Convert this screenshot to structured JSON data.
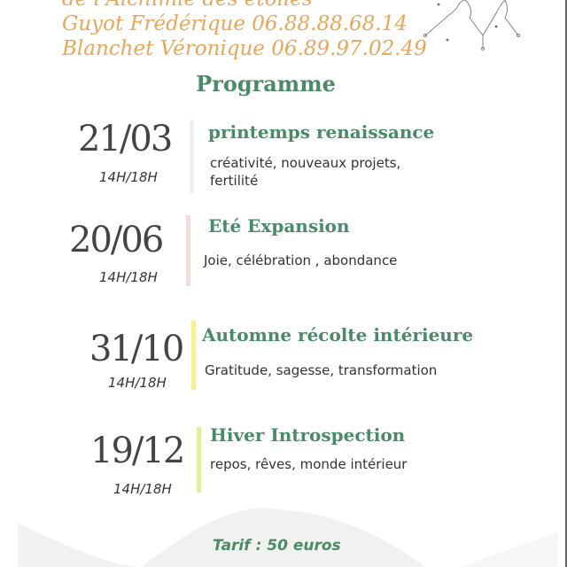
{
  "header": {
    "line1": "de l'Alchimie des étoiles",
    "line2": "Guyot Frédérique 06.88.88.68.14",
    "line3": "Blanchet Véronique 06.89.97.02.49",
    "illustration_icon": "constellation-faces-icon"
  },
  "programme": {
    "heading": "Programme",
    "sessions": [
      {
        "date": "21/03",
        "time": "14H/18H",
        "title": "printemps renaissance",
        "desc1": "créativité, nouveaux projets,",
        "desc2": "fertilité",
        "color": "#f2efef"
      },
      {
        "date": "20/06",
        "time": "14H/18H",
        "title": "Eté Expansion",
        "desc1": "Joie, célébration , abondance",
        "color": "#f5dcdc"
      },
      {
        "date": "31/10",
        "time": "14H/18H",
        "title": "Automne récolte intérieure",
        "desc1": "Gratitude, sagesse, transformation",
        "color": "#f8ee9a"
      },
      {
        "date": "19/12",
        "time": "14H/18H",
        "title": "Hiver Introspection",
        "desc1": "repos, rêves, monde intérieur",
        "color": "#e2eea2"
      }
    ]
  },
  "footer": {
    "tarif": "Tarif : 50 euros"
  },
  "colors": {
    "accent_green": "#4a8a68",
    "accent_orange": "#e8a65a"
  }
}
